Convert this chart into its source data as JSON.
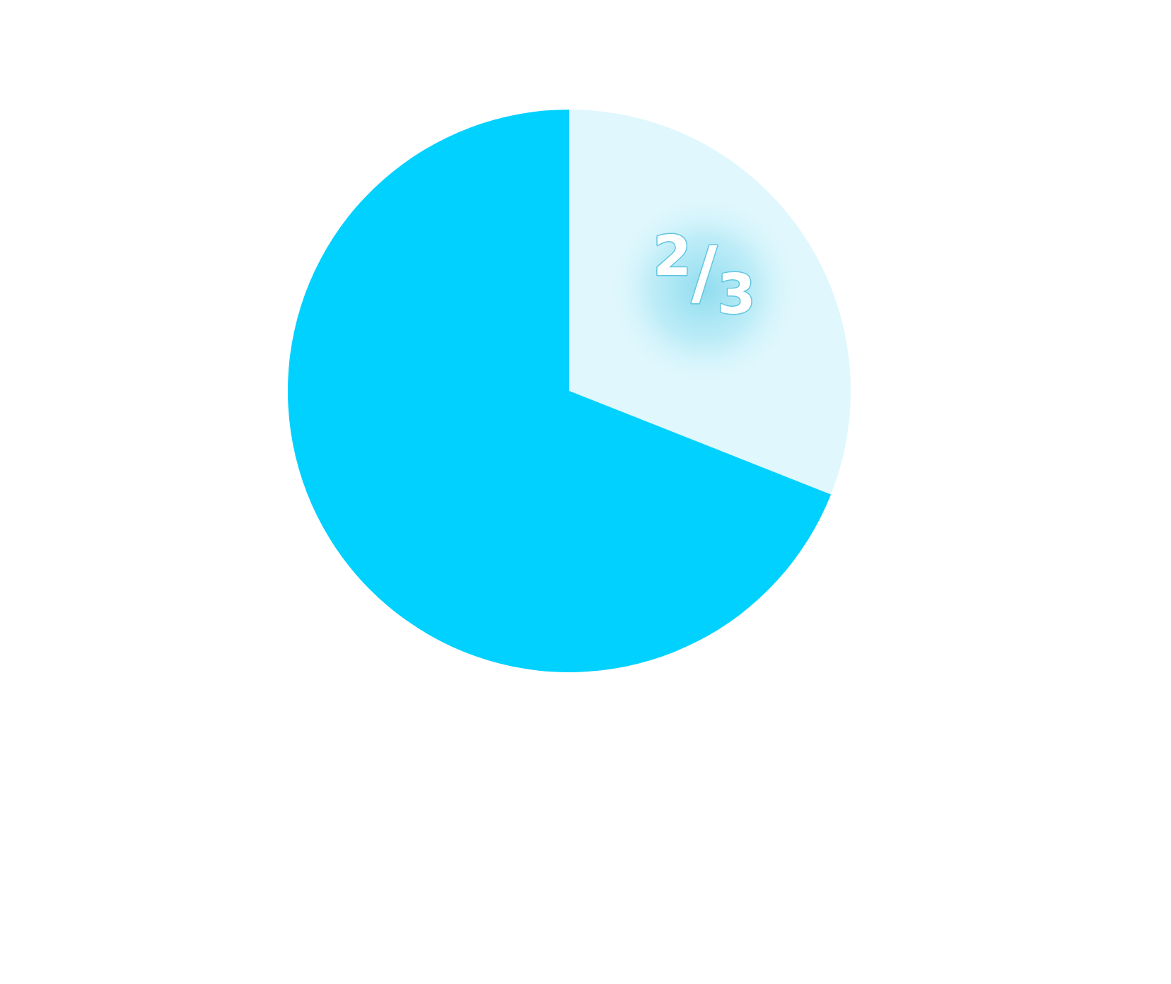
{
  "chart_data": {
    "type": "pie",
    "categories": [
      null,
      null
    ],
    "values": [
      31,
      69
    ],
    "colors": [
      "#dff7fd",
      "#00d1ff"
    ],
    "annotations": [
      "$^{2}$/$_{3}$"
    ]
  }
}
